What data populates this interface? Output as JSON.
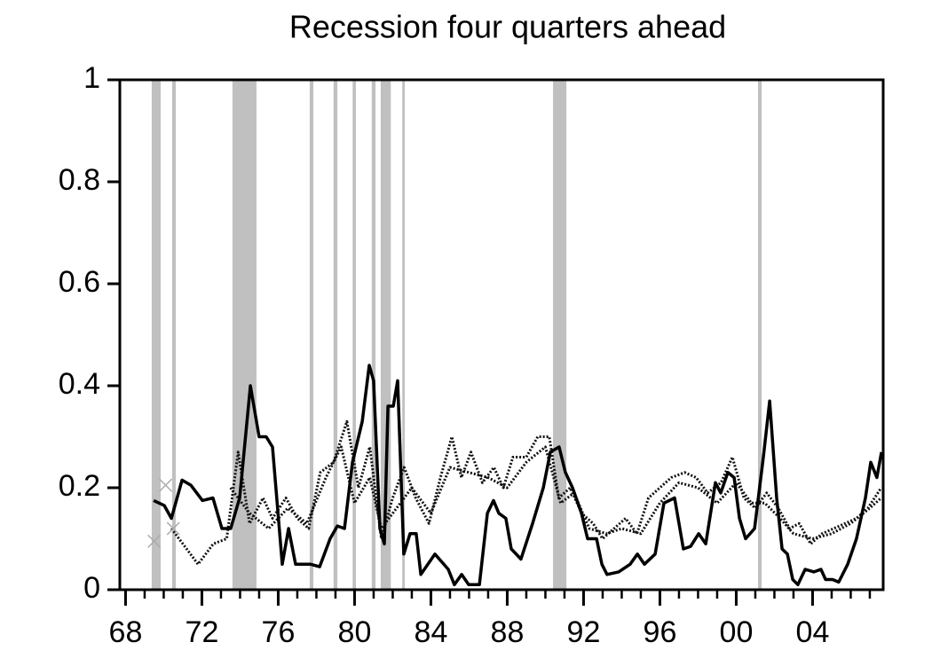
{
  "chart_data": {
    "type": "line",
    "title": "Recession four quarters ahead",
    "xlim": [
      1967.7,
      2007.7
    ],
    "ylim": [
      0,
      1
    ],
    "yticks": [
      0,
      0.2,
      0.4,
      0.6,
      0.8,
      1
    ],
    "xticks": [
      {
        "value": 1968,
        "label": "68"
      },
      {
        "value": 1972,
        "label": "72"
      },
      {
        "value": 1976,
        "label": "76"
      },
      {
        "value": 1980,
        "label": "80"
      },
      {
        "value": 1984,
        "label": "84"
      },
      {
        "value": 1988,
        "label": "88"
      },
      {
        "value": 1992,
        "label": "92"
      },
      {
        "value": 1996,
        "label": "96"
      },
      {
        "value": 2000,
        "label": "00"
      },
      {
        "value": 2004,
        "label": "04"
      }
    ],
    "xminor_ticks": [
      1968,
      1969,
      1970,
      1971,
      1972,
      1973,
      1974,
      1975,
      1976,
      1977,
      1978,
      1979,
      1980,
      1981,
      1982,
      1983,
      1984,
      1985,
      1986,
      1987,
      1988,
      1989,
      1990,
      1991,
      1992,
      1993,
      1994,
      1995,
      1996,
      1997,
      1998,
      1999,
      2000,
      2001,
      2002,
      2003,
      2004,
      2005,
      2006,
      2007
    ],
    "shaded_periods": [
      [
        1969.37,
        1969.84
      ],
      [
        1970.44,
        1970.63
      ],
      [
        1973.6,
        1974.86
      ],
      [
        1977.65,
        1977.84
      ],
      [
        1978.9,
        1979.1
      ],
      [
        1979.9,
        1980.07
      ],
      [
        1980.9,
        1981.1
      ],
      [
        1981.37,
        1981.9
      ],
      [
        1982.5,
        1982.63
      ],
      [
        1990.4,
        1991.1
      ],
      [
        2001.14,
        2001.33
      ]
    ],
    "shade_color": "#c0c0c0",
    "series": [
      {
        "color": "#000000",
        "style": "solid",
        "x": [
          1969.47,
          1970.03,
          1970.4,
          1970.96,
          1971.42,
          1972.03,
          1972.58,
          1973.05,
          1973.51,
          1973.98,
          1974.54,
          1975.0,
          1975.37,
          1975.7,
          1976.21,
          1976.54,
          1976.91,
          1977.7,
          1978.17,
          1978.72,
          1979.1,
          1979.47,
          1979.89,
          1980.4,
          1980.77,
          1981.0,
          1981.33,
          1981.56,
          1981.75,
          1982.03,
          1982.26,
          1982.58,
          1982.91,
          1983.23,
          1983.47,
          1984.21,
          1984.91,
          1985.23,
          1985.61,
          1985.98,
          1986.54,
          1986.96,
          1987.28,
          1987.56,
          1987.93,
          1988.21,
          1988.72,
          1989.33,
          1989.89,
          1990.26,
          1990.72,
          1991.05,
          1991.42,
          1991.89,
          1992.21,
          1992.68,
          1992.96,
          1993.23,
          1993.84,
          1994.44,
          1994.82,
          1995.19,
          1995.75,
          1996.21,
          1996.77,
          1997.23,
          1997.61,
          1998.03,
          1998.4,
          1998.91,
          1999.19,
          1999.56,
          1999.89,
          2000.17,
          2000.49,
          2000.96,
          2001.42,
          2001.75,
          2002.12,
          2002.4,
          2002.68,
          2002.96,
          2003.23,
          2003.61,
          2004.07,
          2004.44,
          2004.68,
          2005.05,
          2005.37,
          2005.84,
          2006.3,
          2006.77,
          2007.05,
          2007.37,
          2007.61
        ],
        "values": [
          0.175,
          0.165,
          0.14,
          0.215,
          0.205,
          0.175,
          0.18,
          0.12,
          0.12,
          0.18,
          0.4,
          0.3,
          0.3,
          0.28,
          0.05,
          0.12,
          0.05,
          0.05,
          0.045,
          0.1,
          0.125,
          0.12,
          0.25,
          0.33,
          0.44,
          0.41,
          0.12,
          0.09,
          0.36,
          0.36,
          0.41,
          0.07,
          0.11,
          0.11,
          0.03,
          0.07,
          0.04,
          0.01,
          0.03,
          0.01,
          0.01,
          0.15,
          0.175,
          0.15,
          0.14,
          0.08,
          0.06,
          0.13,
          0.2,
          0.27,
          0.28,
          0.23,
          0.2,
          0.15,
          0.1,
          0.1,
          0.05,
          0.03,
          0.035,
          0.05,
          0.07,
          0.05,
          0.07,
          0.17,
          0.18,
          0.08,
          0.085,
          0.11,
          0.09,
          0.21,
          0.19,
          0.23,
          0.22,
          0.14,
          0.1,
          0.12,
          0.26,
          0.37,
          0.18,
          0.08,
          0.07,
          0.02,
          0.01,
          0.04,
          0.035,
          0.04,
          0.02,
          0.02,
          0.015,
          0.05,
          0.1,
          0.18,
          0.25,
          0.22,
          0.27
        ]
      },
      {
        "color": "#111111",
        "style": "dotted",
        "x": [
          1970.4,
          1971.2,
          1971.8,
          1972.6,
          1973.3,
          1973.9,
          1974.5,
          1975.2,
          1975.7,
          1976.4,
          1977,
          1977.6,
          1978.2,
          1978.9,
          1979.6,
          1980.2,
          1980.8,
          1981.4,
          1982,
          1982.6,
          1983.2,
          1983.9,
          1984.5,
          1985.1,
          1985.6,
          1986.1,
          1986.7,
          1987.3,
          1987.8,
          1988.3,
          1989,
          1989.6,
          1990.2,
          1990.7,
          1991.3,
          1991.9,
          1992.5,
          1993,
          1993.6,
          1994.2,
          1994.8,
          1995.4,
          1996,
          1996.6,
          1997.3,
          1997.9,
          1998.5,
          1999.2,
          1999.8,
          2000.4,
          2001,
          2001.6,
          2002.2,
          2002.8,
          2003.3,
          2003.9,
          2004.5,
          2005.1,
          2005.7,
          2006.3,
          2006.9,
          2007.6
        ],
        "values": [
          0.12,
          0.08,
          0.05,
          0.09,
          0.1,
          0.27,
          0.13,
          0.18,
          0.14,
          0.18,
          0.14,
          0.12,
          0.23,
          0.25,
          0.33,
          0.2,
          0.28,
          0.1,
          0.18,
          0.24,
          0.18,
          0.13,
          0.22,
          0.3,
          0.22,
          0.27,
          0.21,
          0.24,
          0.2,
          0.26,
          0.26,
          0.3,
          0.3,
          0.18,
          0.2,
          0.15,
          0.13,
          0.1,
          0.12,
          0.14,
          0.11,
          0.18,
          0.2,
          0.22,
          0.23,
          0.22,
          0.19,
          0.21,
          0.26,
          0.18,
          0.16,
          0.19,
          0.16,
          0.12,
          0.13,
          0.09,
          0.11,
          0.12,
          0.13,
          0.14,
          0.16,
          0.2
        ]
      },
      {
        "color": "#111111",
        "style": "dotted",
        "x": [
          1973.5,
          1974.5,
          1975.5,
          1976.5,
          1977.5,
          1978.5,
          1979.3,
          1980,
          1980.8,
          1981.4,
          1982.2,
          1983,
          1984,
          1985,
          1986,
          1987,
          1988,
          1989,
          1990,
          1990.8,
          1991.5,
          1992.3,
          1993.2,
          1994,
          1995,
          1996,
          1997,
          1998,
          1999,
          2000,
          2000.8,
          2001.5,
          2002.3,
          2003,
          2004,
          2005,
          2006,
          2007,
          2007.6
        ],
        "values": [
          0.2,
          0.15,
          0.12,
          0.16,
          0.13,
          0.22,
          0.28,
          0.17,
          0.22,
          0.12,
          0.16,
          0.2,
          0.15,
          0.24,
          0.23,
          0.22,
          0.2,
          0.25,
          0.28,
          0.17,
          0.19,
          0.12,
          0.11,
          0.12,
          0.11,
          0.17,
          0.21,
          0.2,
          0.17,
          0.21,
          0.17,
          0.17,
          0.14,
          0.11,
          0.1,
          0.11,
          0.13,
          0.16,
          0.18
        ]
      }
    ],
    "markers": {
      "color": "#aaaaaa",
      "x": [
        1969.5,
        1970.1,
        1970.5
      ],
      "values": [
        0.095,
        0.205,
        0.12
      ]
    }
  }
}
